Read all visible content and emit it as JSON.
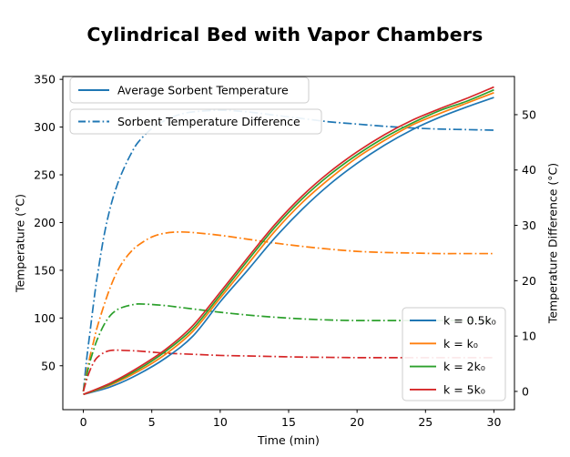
{
  "accent_colors": {
    "blue": "#1f77b4",
    "orange": "#ff7f0e",
    "green": "#2ca02c",
    "red": "#d62728",
    "legend_border": "#cccccc"
  },
  "legends": {
    "avg_temp_label": "Average Sorbent Temperature",
    "temp_diff_label": "Sorbent Temperature Difference"
  },
  "chart_data": {
    "type": "line",
    "title": "Cylindrical Bed with Vapor Chambers",
    "xlabel": "Time (min)",
    "ylabel_left": "Temperature (°C)",
    "ylabel_right": "Temperature Difference (°C)",
    "xlim": [
      -1.5,
      31.5
    ],
    "ylim_left": [
      4,
      353
    ],
    "ylim_right": [
      -3.3,
      56.9
    ],
    "xticks": [
      0,
      5,
      10,
      15,
      20,
      25,
      30
    ],
    "yticks_left": [
      50,
      100,
      150,
      200,
      250,
      300,
      350
    ],
    "yticks_right": [
      0,
      10,
      20,
      30,
      40,
      50
    ],
    "grid": false,
    "legend_positions": [
      "upper left (two boxes)",
      "lower right"
    ],
    "temperature_series": {
      "axis": "left",
      "style": "solid",
      "x": [
        0,
        2,
        4,
        6,
        8,
        10,
        12,
        14,
        16,
        18,
        20,
        22,
        24,
        26,
        28,
        30
      ],
      "series": [
        {
          "name": "k = 0.5k₀",
          "color": "#1f77b4",
          "values": [
            20,
            28,
            41,
            58,
            81,
            117,
            150,
            184,
            214,
            240,
            262,
            281,
            297,
            310,
            321,
            331
          ]
        },
        {
          "name": "k = k₀",
          "color": "#ff7f0e",
          "values": [
            20,
            30,
            44,
            62,
            86,
            121,
            156,
            191,
            221,
            246,
            268,
            286,
            302,
            314,
            325,
            336
          ]
        },
        {
          "name": "k = 2k₀",
          "color": "#2ca02c",
          "values": [
            20,
            31,
            46,
            65,
            89,
            124,
            160,
            195,
            225,
            250,
            271,
            289,
            304,
            317,
            327,
            339
          ]
        },
        {
          "name": "k = 5k₀",
          "color": "#d62728",
          "values": [
            20,
            32,
            48,
            67,
            92,
            127,
            163,
            198,
            228,
            253,
            274,
            292,
            307,
            319,
            330,
            342
          ]
        }
      ]
    },
    "difference_series": {
      "axis": "right",
      "style": "dashdot",
      "x": [
        0,
        0.25,
        0.5,
        0.75,
        1,
        1.5,
        2,
        2.5,
        3,
        3.5,
        4,
        5,
        6,
        7,
        8,
        10,
        12,
        14,
        16,
        18,
        20,
        22,
        24,
        26,
        28,
        30
      ],
      "series": [
        {
          "name": "k = 0.5k₀",
          "color": "#1f77b4",
          "values": [
            0,
            6,
            11,
            16,
            20.5,
            28,
            33.5,
            37.5,
            40.5,
            43,
            45,
            47.5,
            49,
            50,
            50.5,
            50.8,
            50.5,
            49.9,
            49.3,
            48.7,
            48.3,
            47.9,
            47.6,
            47.4,
            47.3,
            47.2
          ]
        },
        {
          "name": "k = k₀",
          "color": "#ff7f0e",
          "values": [
            0,
            3.5,
            6.5,
            9,
            11.5,
            15.5,
            19,
            21.8,
            23.8,
            25.3,
            26.4,
            27.9,
            28.6,
            28.8,
            28.7,
            28.2,
            27.5,
            26.8,
            26.2,
            25.7,
            25.3,
            25.1,
            25,
            24.9,
            24.9,
            24.9
          ]
        },
        {
          "name": "k = 2k₀",
          "color": "#2ca02c",
          "values": [
            0,
            3,
            5.5,
            7.5,
            9.3,
            12,
            13.8,
            14.8,
            15.3,
            15.6,
            15.8,
            15.7,
            15.5,
            15.2,
            14.9,
            14.3,
            13.8,
            13.4,
            13.1,
            12.9,
            12.8,
            12.8,
            12.8,
            12.8,
            12.8,
            12.8
          ]
        },
        {
          "name": "k = 5k₀",
          "color": "#d62728",
          "values": [
            0,
            2.2,
            3.9,
            5.2,
            6.1,
            7,
            7.4,
            7.45,
            7.4,
            7.35,
            7.3,
            7.1,
            6.9,
            6.8,
            6.7,
            6.5,
            6.4,
            6.3,
            6.2,
            6.15,
            6.1,
            6.1,
            6.1,
            6.1,
            6.1,
            6.1
          ]
        }
      ]
    }
  }
}
